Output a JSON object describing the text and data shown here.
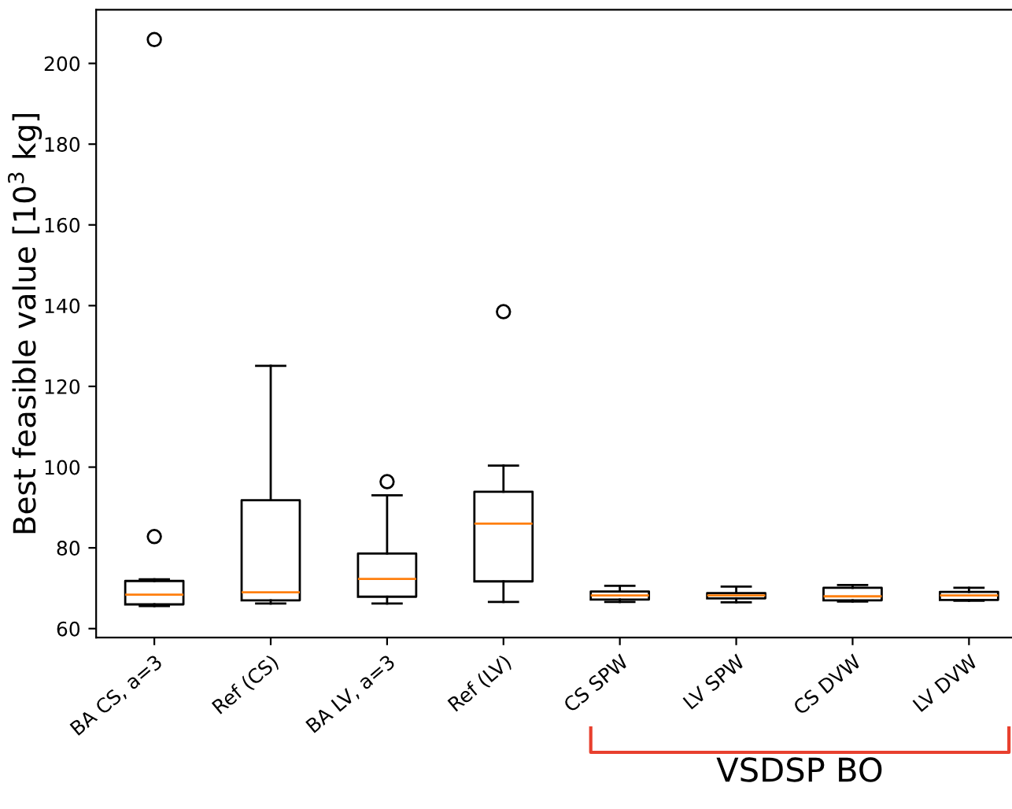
{
  "chart_data": {
    "type": "box",
    "ylabel": "Best feasible value [10$^{3}$ kg]",
    "categories": [
      "BA CS, a=3",
      "Ref (CS)",
      "BA LV, a=3",
      "Ref (LV)",
      "CS SPW",
      "LV SPW",
      "CS DVW",
      "LV DVW"
    ],
    "boxes": [
      {
        "low": 65.6,
        "q1": 66.0,
        "median": 68.4,
        "q3": 71.8,
        "high": 72.2,
        "outliers": [
          82.8,
          205.9
        ]
      },
      {
        "low": 66.2,
        "q1": 67.0,
        "median": 69.0,
        "q3": 91.8,
        "high": 125.1
      },
      {
        "low": 66.2,
        "q1": 67.9,
        "median": 72.3,
        "q3": 78.6,
        "high": 93.0,
        "outliers": [
          96.4
        ]
      },
      {
        "low": 66.6,
        "q1": 71.7,
        "median": 86.0,
        "q3": 93.9,
        "high": 100.4,
        "outliers": [
          138.5
        ]
      },
      {
        "low": 66.6,
        "q1": 67.2,
        "median": 68.2,
        "q3": 69.2,
        "high": 70.6
      },
      {
        "low": 66.5,
        "q1": 67.5,
        "median": 68.2,
        "q3": 68.8,
        "high": 70.4
      },
      {
        "low": 66.7,
        "q1": 67.0,
        "median": 68.0,
        "q3": 70.1,
        "high": 70.8
      },
      {
        "low": 66.9,
        "q1": 67.1,
        "median": 68.2,
        "q3": 69.1,
        "high": 70.1
      }
    ],
    "color": "#000000",
    "ylim": [
      57.8,
      213.3
    ],
    "yticks": [
      60,
      80,
      100,
      120,
      140,
      160,
      180,
      200
    ],
    "grid": false,
    "annotations": [
      "VSDSP BO"
    ]
  }
}
